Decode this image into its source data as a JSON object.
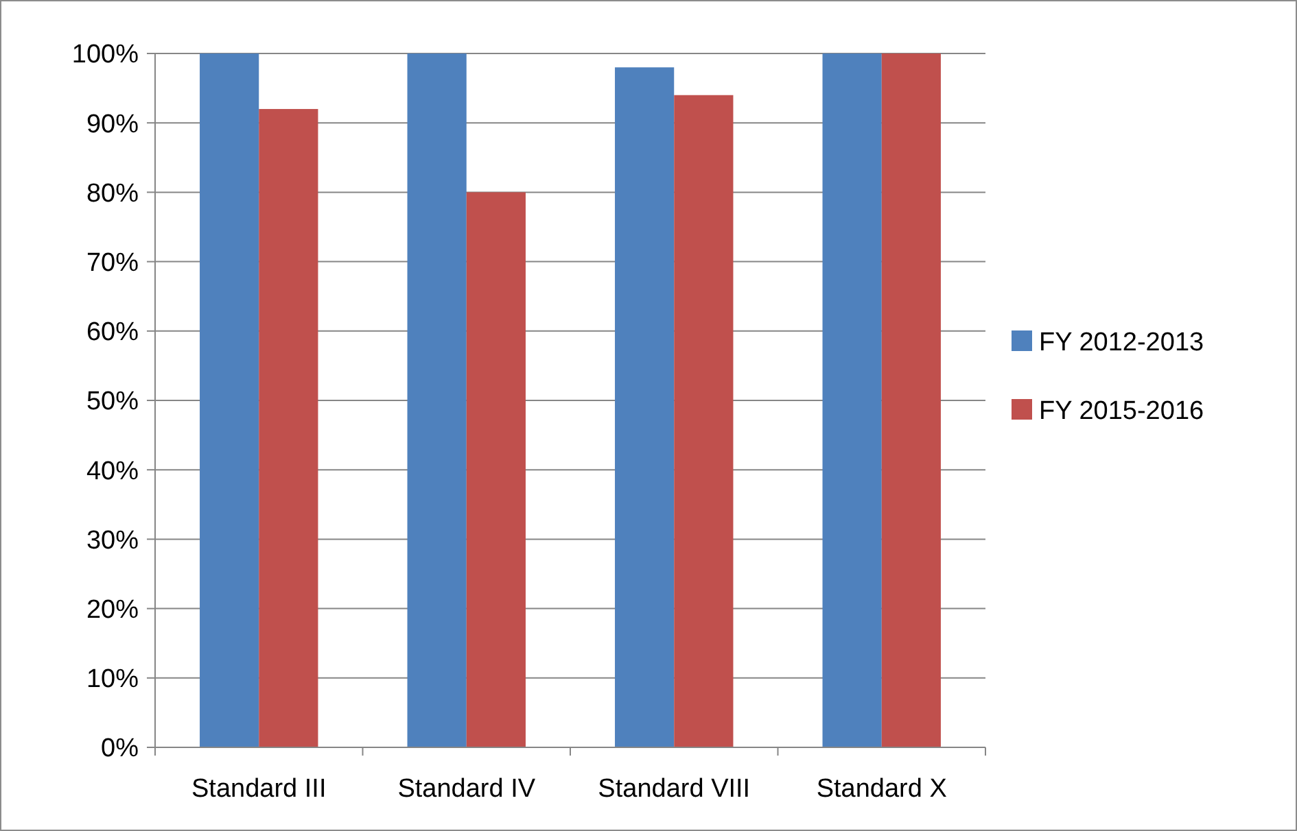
{
  "chart_data": {
    "type": "bar",
    "categories": [
      "Standard III",
      "Standard IV",
      "Standard VIII",
      "Standard X"
    ],
    "series": [
      {
        "name": "FY 2012-2013",
        "color": "#4f81bd",
        "values": [
          100,
          100,
          98,
          100
        ]
      },
      {
        "name": "FY 2015-2016",
        "color": "#c0504d",
        "values": [
          92,
          80,
          94,
          100
        ]
      }
    ],
    "ylim": [
      0,
      100
    ],
    "yticks": [
      {
        "value": 0,
        "label": "0%"
      },
      {
        "value": 10,
        "label": "10%"
      },
      {
        "value": 20,
        "label": "20%"
      },
      {
        "value": 30,
        "label": "30%"
      },
      {
        "value": 40,
        "label": "40%"
      },
      {
        "value": 50,
        "label": "50%"
      },
      {
        "value": 60,
        "label": "60%"
      },
      {
        "value": 70,
        "label": "70%"
      },
      {
        "value": 80,
        "label": "80%"
      },
      {
        "value": 90,
        "label": "90%"
      },
      {
        "value": 100,
        "label": "100%"
      }
    ],
    "grid": "y",
    "legend": "right"
  }
}
